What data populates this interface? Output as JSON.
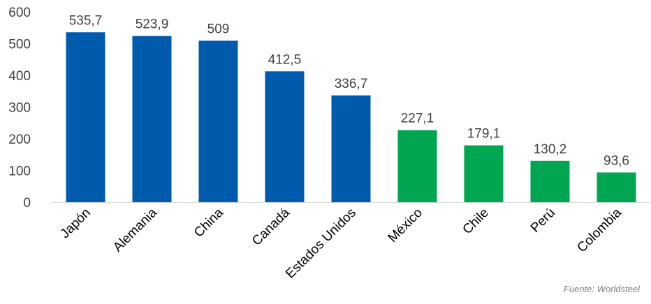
{
  "chart_data": {
    "type": "bar",
    "categories": [
      "Japón",
      "Alemania",
      "China",
      "Canadá",
      "Estados Unidos",
      "México",
      "Chile",
      "Perú",
      "Colombia"
    ],
    "values": [
      535.7,
      523.9,
      509,
      412.5,
      336.7,
      227.1,
      179.1,
      130.2,
      93.6
    ],
    "data_labels": [
      "535,7",
      "523,9",
      "509",
      "412,5",
      "336,7",
      "227,1",
      "179,1",
      "130,2",
      "93,6"
    ],
    "bar_colors": [
      "#005BAC",
      "#005BAC",
      "#005BAC",
      "#005BAC",
      "#005BAC",
      "#00A651",
      "#00A651",
      "#00A651",
      "#00A651"
    ],
    "yticks": [
      0,
      100,
      200,
      300,
      400,
      500,
      600
    ],
    "ylim": [
      0,
      600
    ],
    "grid": false,
    "legend": "none"
  },
  "source_note": "Fuente: Worldsteel"
}
